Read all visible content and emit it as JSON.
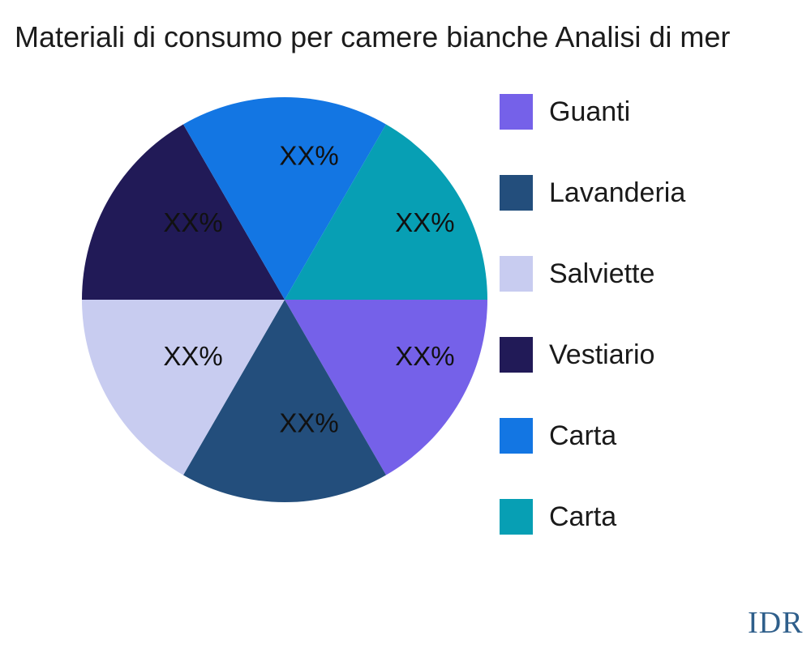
{
  "title": "Materiali di consumo per camere bianche Analisi di mer",
  "watermark": "IDR",
  "chart_data": {
    "type": "pie",
    "title": "Materiali di consumo per camere bianche Analisi di mer",
    "legend_position": "right",
    "labels_shown_as": "percent-placeholder",
    "slices": [
      {
        "label": "Guanti",
        "value": 16.67,
        "value_label": "XX%",
        "color": "#7561e9"
      },
      {
        "label": "Lavanderia",
        "value": 16.67,
        "value_label": "XX%",
        "color": "#234e7c"
      },
      {
        "label": "Salviette",
        "value": 16.67,
        "value_label": "XX%",
        "color": "#c8ccf0"
      },
      {
        "label": "Vestiario",
        "value": 16.67,
        "value_label": "XX%",
        "color": "#211a57"
      },
      {
        "label": "Carta",
        "value": 16.67,
        "value_label": "XX%",
        "color": "#1376e3"
      },
      {
        "label": "Carta",
        "value": 16.67,
        "value_label": "XX%",
        "color": "#079fb4"
      }
    ]
  }
}
